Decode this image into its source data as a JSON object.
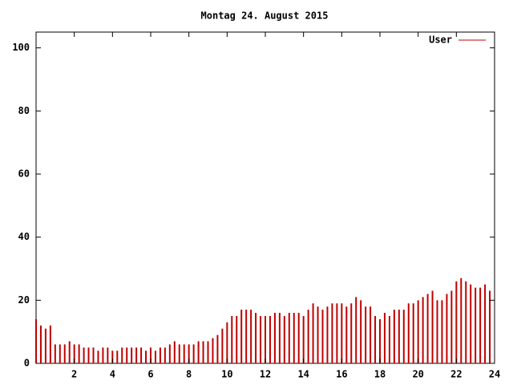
{
  "chart_data": {
    "type": "impulse",
    "title": "Montag 24. August 2015",
    "series": [
      {
        "name": "User",
        "color": "#c00000",
        "x": [
          0,
          0.25,
          0.5,
          0.75,
          1,
          1.25,
          1.5,
          1.75,
          2,
          2.25,
          2.5,
          2.75,
          3,
          3.25,
          3.5,
          3.75,
          4,
          4.25,
          4.5,
          4.75,
          5,
          5.25,
          5.5,
          5.75,
          6,
          6.25,
          6.5,
          6.75,
          7,
          7.25,
          7.5,
          7.75,
          8,
          8.25,
          8.5,
          8.75,
          9,
          9.25,
          9.5,
          9.75,
          10,
          10.25,
          10.5,
          10.75,
          11,
          11.25,
          11.5,
          11.75,
          12,
          12.25,
          12.5,
          12.75,
          13,
          13.25,
          13.5,
          13.75,
          14,
          14.25,
          14.5,
          14.75,
          15,
          15.25,
          15.5,
          15.75,
          16,
          16.25,
          16.5,
          16.75,
          17,
          17.25,
          17.5,
          17.75,
          18,
          18.25,
          18.5,
          18.75,
          19,
          19.25,
          19.5,
          19.75,
          20,
          20.25,
          20.5,
          20.75,
          21,
          21.25,
          21.5,
          21.75,
          22,
          22.25,
          22.5,
          22.75,
          23,
          23.25,
          23.5,
          23.75
        ],
        "values": [
          14,
          12,
          11,
          12,
          6,
          6,
          6,
          7,
          6,
          6,
          5,
          5,
          5,
          4,
          5,
          5,
          4,
          4,
          5,
          5,
          5,
          5,
          5,
          4,
          5,
          4,
          5,
          5,
          6,
          7,
          6,
          6,
          6,
          6,
          7,
          7,
          7,
          8,
          9,
          11,
          13,
          15,
          15,
          17,
          17,
          17,
          16,
          15,
          15,
          15,
          16,
          16,
          15,
          16,
          16,
          16,
          15,
          17,
          19,
          18,
          17,
          18,
          19,
          19,
          19,
          18,
          19,
          21,
          20,
          18,
          18,
          15,
          14,
          16,
          15,
          17,
          17,
          17,
          19,
          19,
          20,
          21,
          22,
          23,
          20,
          20,
          22,
          23,
          26,
          27,
          26,
          25,
          24,
          24,
          25,
          23
        ]
      }
    ],
    "xlim": [
      0,
      24
    ],
    "xticks": [
      2,
      4,
      6,
      8,
      10,
      12,
      14,
      16,
      18,
      20,
      22,
      24
    ],
    "ylim": [
      0,
      105
    ],
    "yticks": [
      0,
      20,
      40,
      60,
      80,
      100
    ],
    "legend": "top-right"
  }
}
